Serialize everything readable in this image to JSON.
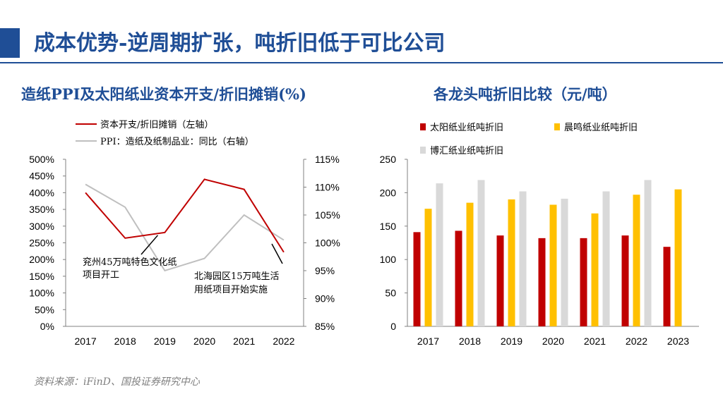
{
  "page": {
    "title": "成本优势-逆周期扩张，吨折旧低于可比公司",
    "source": "资料来源：iFinD、国投证券研究中心"
  },
  "colors": {
    "brand": "#1f4e96",
    "red": "#c00000",
    "gray": "#bfbfbf",
    "yellow": "#ffc000",
    "light_gray": "#d9d9d9"
  },
  "chart_data": [
    {
      "type": "line",
      "title": "造纸PPI及太阳纸业资本开支/折旧摊销(%)",
      "x": [
        "2017",
        "2018",
        "2019",
        "2020",
        "2021",
        "2022"
      ],
      "series": [
        {
          "name": "资本开支/折旧摊销（左轴）",
          "axis": "left",
          "color": "#c00000",
          "values": [
            400,
            264,
            281,
            440,
            410,
            222
          ]
        },
        {
          "name": "PPI：造纸及纸制品业：同比（右轴）",
          "axis": "right",
          "color": "#bfbfbf",
          "values": [
            110.5,
            106.4,
            95.0,
            97.2,
            105.0,
            100.5
          ]
        }
      ],
      "left_axis": {
        "ylim": [
          0,
          500
        ],
        "ticks": [
          "0%",
          "50%",
          "100%",
          "150%",
          "200%",
          "250%",
          "300%",
          "350%",
          "400%",
          "450%",
          "500%"
        ]
      },
      "right_axis": {
        "ylim": [
          85,
          115
        ],
        "ticks": [
          "85%",
          "90%",
          "95%",
          "100%",
          "105%",
          "110%",
          "115%"
        ]
      },
      "annotations": [
        {
          "lines": [
            "兖州45万吨特色文化纸",
            "项目开工"
          ],
          "target_index": 2,
          "target_series": 0
        },
        {
          "lines": [
            "北海园区15万吨生活",
            "用纸项目开始实施"
          ],
          "target_index": 5,
          "target_series": 0
        }
      ]
    },
    {
      "type": "bar",
      "title": "各龙头吨折旧比较（元/吨）",
      "categories": [
        "2017",
        "2018",
        "2019",
        "2020",
        "2021",
        "2022",
        "2023"
      ],
      "series": [
        {
          "name": "太阳纸业纸吨折旧",
          "color": "#c00000",
          "values": [
            141,
            143,
            136,
            132,
            132,
            136,
            119
          ]
        },
        {
          "name": "晨鸣纸业纸吨折旧",
          "color": "#ffc000",
          "values": [
            176,
            185,
            190,
            182,
            169,
            197,
            205
          ]
        },
        {
          "name": "博汇纸业纸吨折旧",
          "color": "#d9d9d9",
          "values": [
            214,
            219,
            202,
            191,
            202,
            219,
            null
          ]
        }
      ],
      "ylim": [
        0,
        250
      ],
      "ticks": [
        "0",
        "50",
        "100",
        "150",
        "200",
        "250"
      ]
    }
  ]
}
